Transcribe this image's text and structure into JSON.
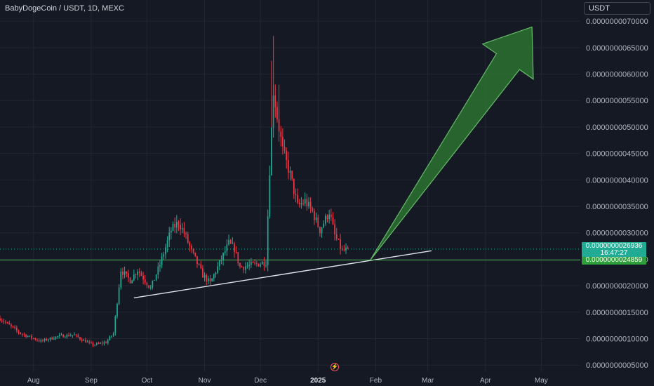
{
  "header": {
    "symbol": "BabyDogeCoin / USDT, 1D, MEXC",
    "currency_button": "USDT"
  },
  "badges": {
    "last_price": "0.0000000026936",
    "countdown": "16:47:27",
    "line_price": "0.0000000024859"
  },
  "colors": {
    "background": "#151924",
    "up": "#22ab94",
    "down": "#f23645",
    "trendline": "#e0e3eb",
    "hline": "#4caf50",
    "arrow_fill": "#2e7d32",
    "arrow_stroke": "#66bb6a"
  },
  "icons": {
    "event": "lightning-event-icon"
  },
  "chart_data": {
    "type": "candlestick",
    "title": "BabyDogeCoin / USDT, 1D, MEXC",
    "interval": "1D",
    "x_tick_labels": [
      "Aug",
      "Sep",
      "Oct",
      "Nov",
      "Dec",
      "2025",
      "Feb",
      "Mar",
      "Apr",
      "May"
    ],
    "x_ticks": [
      "2024-08-01",
      "2024-09-01",
      "2024-10-01",
      "2024-11-01",
      "2024-12-01",
      "2025-01-01",
      "2025-02-01",
      "2025-03-01",
      "2025-04-01",
      "2025-05-01"
    ],
    "y_tick_labels": [
      "0.0000000005000",
      "0.0000000010000",
      "0.0000000015000",
      "0.0000000020000",
      "0.0000000025000",
      "0.0000000030000",
      "0.0000000035000",
      "0.0000000040000",
      "0.0000000045000",
      "0.0000000050000",
      "0.0000000055000",
      "0.0000000060000",
      "0.0000000065000",
      "0.0000000070000"
    ],
    "y_ticks": [
      5,
      10,
      15,
      20,
      25,
      30,
      35,
      40,
      45,
      50,
      55,
      60,
      65,
      70
    ],
    "y_scale_note": "values in units of 1e-10 USDT",
    "ylim": [
      3.7,
      74
    ],
    "xlim": [
      "2024-07-14",
      "2025-05-22"
    ],
    "grid": true,
    "candle_key_points": [
      [
        "2024-07-14",
        13.8
      ],
      [
        "2024-07-25",
        11.0
      ],
      [
        "2024-08-05",
        9.5
      ],
      [
        "2024-08-15",
        10.5
      ],
      [
        "2024-08-23",
        10.7
      ],
      [
        "2024-08-26",
        10.0
      ],
      [
        "2024-09-02",
        8.8
      ],
      [
        "2024-09-09",
        9.3
      ],
      [
        "2024-09-13",
        11.0
      ],
      [
        "2024-09-17",
        23.0
      ],
      [
        "2024-09-22",
        21.0
      ],
      [
        "2024-09-26",
        23.0
      ],
      [
        "2024-10-03",
        19.5
      ],
      [
        "2024-10-08",
        24.0
      ],
      [
        "2024-10-14",
        30.5
      ],
      [
        "2024-10-18",
        32.0
      ],
      [
        "2024-10-21",
        30.0
      ],
      [
        "2024-10-25",
        26.5
      ],
      [
        "2024-10-31",
        22.0
      ],
      [
        "2024-11-04",
        20.5
      ],
      [
        "2024-11-10",
        25.0
      ],
      [
        "2024-11-14",
        28.0
      ],
      [
        "2024-11-17",
        27.0
      ],
      [
        "2024-11-20",
        23.5
      ],
      [
        "2024-11-28",
        24.0
      ],
      [
        "2024-12-04",
        24.5
      ],
      [
        "2024-12-06",
        42.0
      ],
      [
        "2024-12-08",
        57.0
      ],
      [
        "2024-12-10",
        52.0
      ],
      [
        "2024-12-13",
        45.5
      ],
      [
        "2024-12-17",
        41.0
      ],
      [
        "2024-12-21",
        35.0
      ],
      [
        "2024-12-25",
        36.0
      ],
      [
        "2024-12-29",
        34.0
      ],
      [
        "2025-01-02",
        30.5
      ],
      [
        "2025-01-07",
        34.0
      ],
      [
        "2025-01-10",
        29.5
      ],
      [
        "2025-01-14",
        26.5
      ],
      [
        "2025-01-17",
        26.9
      ]
    ],
    "trendline": [
      [
        "2024-09-24",
        17.7
      ],
      [
        "2025-03-03",
        26.6
      ]
    ],
    "horizontal_line": 24.859,
    "last_price": 26.936,
    "projection_arrow": {
      "from": [
        "2025-01-29",
        24.8
      ],
      "to": [
        "2025-04-26",
        68.9
      ]
    }
  }
}
